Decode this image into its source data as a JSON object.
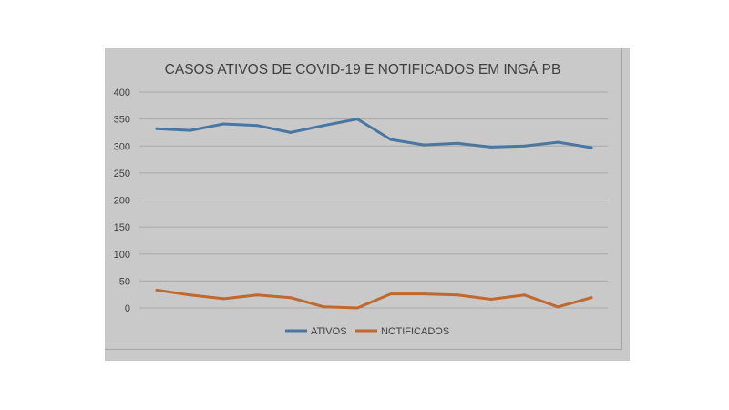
{
  "chart_data": {
    "type": "line",
    "title": "CASOS ATIVOS DE COVID-19 E NOTIFICADOS EM INGÁ PB",
    "xlabel": "",
    "ylabel": "",
    "ylim": [
      0,
      400
    ],
    "yticks": [
      0,
      50,
      100,
      150,
      200,
      250,
      300,
      350,
      400
    ],
    "grid": true,
    "legend_position": "bottom",
    "x": [
      1,
      2,
      3,
      4,
      5,
      6,
      7,
      8,
      9,
      10,
      11,
      12,
      13,
      14
    ],
    "series": [
      {
        "name": "ATIVOS",
        "color": "#4a76a2",
        "values": [
          332,
          329,
          341,
          338,
          325,
          338,
          350,
          312,
          302,
          305,
          298,
          300,
          307,
          297
        ]
      },
      {
        "name": "NOTIFICADOS",
        "color": "#c0682f",
        "values": [
          33,
          24,
          17,
          24,
          19,
          2,
          0,
          26,
          26,
          24,
          16,
          24,
          2,
          19
        ]
      }
    ]
  }
}
